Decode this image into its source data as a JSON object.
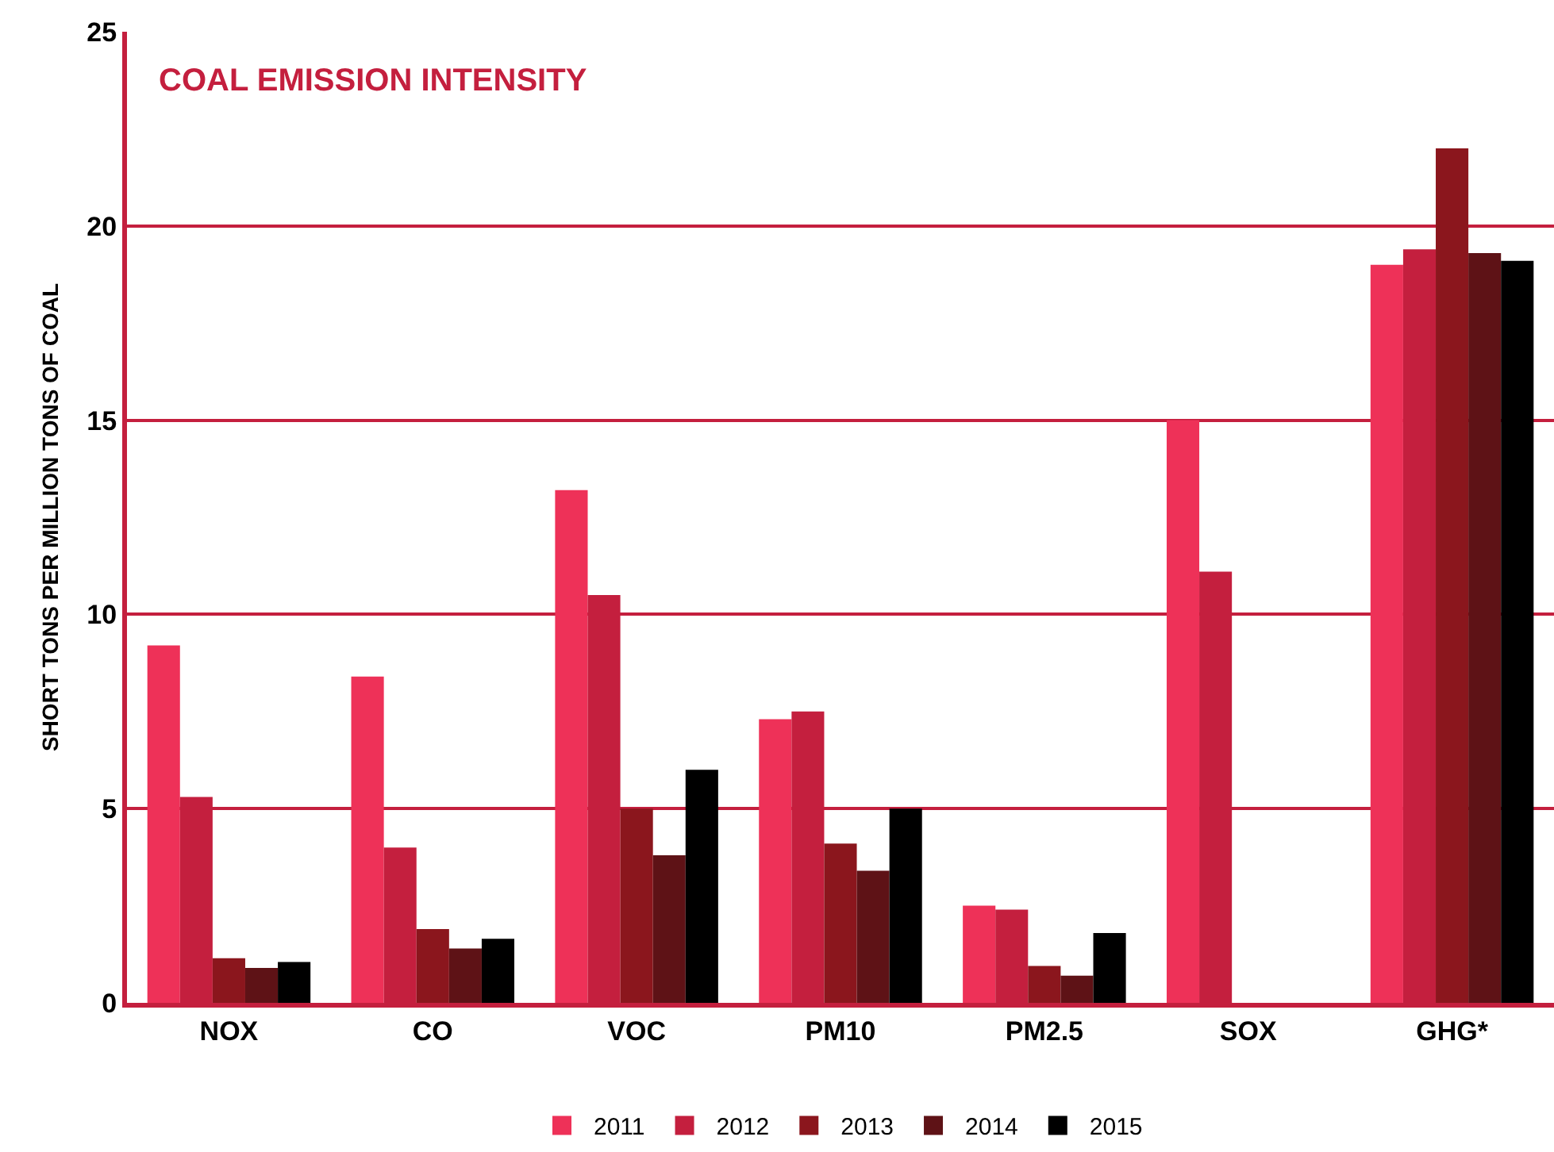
{
  "chart_data": {
    "type": "bar",
    "title": "COAL EMISSION INTENSITY",
    "ylabel": "SHORT TONS PER MILLION TONS OF COAL",
    "categories": [
      "NOX",
      "CO",
      "VOC",
      "PM10",
      "PM2.5",
      "SOX",
      "GHG*"
    ],
    "series": [
      {
        "name": "2011",
        "color": "#ee3158",
        "values": [
          9.2,
          8.4,
          13.2,
          7.3,
          2.5,
          15.0,
          19.0
        ]
      },
      {
        "name": "2012",
        "color": "#c41f3e",
        "values": [
          5.3,
          4.0,
          10.5,
          7.5,
          2.4,
          11.1,
          19.4
        ]
      },
      {
        "name": "2013",
        "color": "#8b161d",
        "values": [
          1.15,
          1.9,
          5.0,
          4.1,
          0.95,
          null,
          22.0
        ]
      },
      {
        "name": "2014",
        "color": "#5e1216",
        "values": [
          0.9,
          1.4,
          3.8,
          3.4,
          0.7,
          null,
          19.3
        ]
      },
      {
        "name": "2015",
        "color": "#000000",
        "values": [
          1.05,
          1.65,
          6.0,
          5.0,
          1.8,
          null,
          19.1
        ]
      }
    ],
    "ylim": [
      0,
      25
    ],
    "yticks": [
      0,
      5,
      10,
      15,
      20,
      25
    ],
    "grid": "y",
    "legend": "bottom"
  }
}
